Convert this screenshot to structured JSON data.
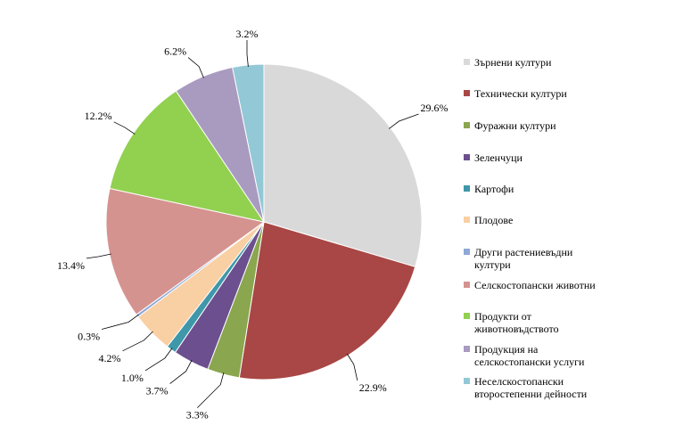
{
  "chart_data": {
    "type": "pie",
    "start_angle_deg": 0,
    "direction": "clockwise",
    "legend_position": "right",
    "slices": [
      {
        "label": "Зърнени култури",
        "value": 29.6,
        "value_label": "29.6%",
        "color": "#d9d9d9",
        "label_pos": "right"
      },
      {
        "label": "Технически култури",
        "value": 22.9,
        "value_label": "22.9%",
        "color": "#a84745",
        "label_pos": "bottom"
      },
      {
        "label": "Фуражни култури",
        "value": 3.3,
        "value_label": "3.3%",
        "color": "#8aa64e",
        "label_pos": "bottom"
      },
      {
        "label": "Зеленчуци",
        "value": 3.7,
        "value_label": "3.7%",
        "color": "#6c4f8e",
        "label_pos": "bottom-left"
      },
      {
        "label": "Картофи",
        "value": 1.0,
        "value_label": "1.0%",
        "color": "#3f97aa",
        "label_pos": "bottom-left"
      },
      {
        "label": "Плодове",
        "value": 4.2,
        "value_label": "4.2%",
        "color": "#f9cfa4",
        "label_pos": "left"
      },
      {
        "label": "Други растениевъдни култури",
        "value": 0.3,
        "value_label": "0.3%",
        "color": "#8ea9d6",
        "label_pos": "left"
      },
      {
        "label": "Селскостопански животни",
        "value": 13.4,
        "value_label": "13.4%",
        "color": "#d59390",
        "label_pos": "left"
      },
      {
        "label": "Продукти от животновъдството",
        "value": 12.2,
        "value_label": "12.2%",
        "color": "#92d050",
        "label_pos": "top-left"
      },
      {
        "label": "Продукция на селскостопански услуги",
        "value": 6.2,
        "value_label": "6.2%",
        "color": "#a99ac0",
        "label_pos": "top"
      },
      {
        "label": "Неселскостопански второстепенни дейности",
        "value": 3.2,
        "value_label": "3.2%",
        "color": "#93c8d6",
        "label_pos": "top"
      }
    ],
    "legend_lines": [
      [
        "Зърнени култури"
      ],
      [
        "Технически култури"
      ],
      [
        "Фуражни култури"
      ],
      [
        "Зеленчуци"
      ],
      [
        "Картофи"
      ],
      [
        "Плодове"
      ],
      [
        "Други растениевъдни",
        "култури"
      ],
      [
        "Селскостопански животни"
      ],
      [
        "Продукти от",
        "животновъдството"
      ],
      [
        "Продукция на",
        "селскостопански услуги"
      ],
      [
        "Неселскостопански",
        "второстепенни дейности"
      ]
    ]
  }
}
